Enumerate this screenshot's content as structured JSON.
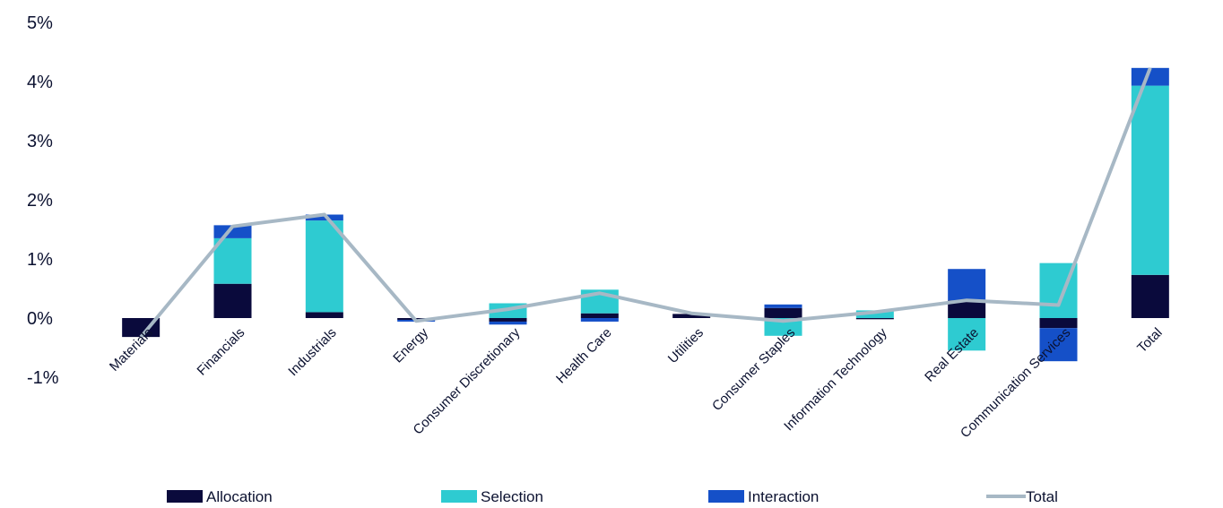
{
  "chart_data": {
    "type": "bar",
    "stacked": true,
    "categories": [
      "Materials",
      "Financials",
      "Industrials",
      "Energy",
      "Consumer Discretionary",
      "Health Care",
      "Utilities",
      "Consumer Staples",
      "Information Technology",
      "Real Estate",
      "Communication Services",
      "Total"
    ],
    "series": [
      {
        "name": "Allocation",
        "type": "bar",
        "color": "#0a0a3c",
        "values": [
          -0.32,
          0.58,
          0.1,
          -0.03,
          -0.06,
          0.08,
          0.07,
          0.17,
          -0.02,
          0.3,
          -0.17,
          0.73
        ]
      },
      {
        "name": "Selection",
        "type": "bar",
        "color": "#2ecbd1",
        "values": [
          0.0,
          0.77,
          1.55,
          0.0,
          0.25,
          0.4,
          0.0,
          -0.3,
          0.13,
          -0.55,
          0.93,
          3.2
        ]
      },
      {
        "name": "Interaction",
        "type": "bar",
        "color": "#1550c8",
        "values": [
          0.0,
          0.22,
          0.1,
          -0.03,
          -0.05,
          -0.06,
          0.0,
          0.06,
          0.0,
          0.53,
          -0.56,
          0.3
        ]
      },
      {
        "name": "Total",
        "type": "line",
        "color": "#a7b8c5",
        "values": [
          -0.32,
          1.55,
          1.75,
          -0.05,
          0.15,
          0.42,
          0.08,
          -0.05,
          0.1,
          0.3,
          0.22,
          4.23
        ]
      }
    ],
    "y_ticks": [
      "5%",
      "4%",
      "3%",
      "2%",
      "1%",
      "0%",
      "-1%"
    ],
    "y_tick_values": [
      5,
      4,
      3,
      2,
      1,
      0,
      -1
    ],
    "ylim": [
      -1,
      5
    ],
    "grid": false,
    "legend_position": "bottom"
  }
}
